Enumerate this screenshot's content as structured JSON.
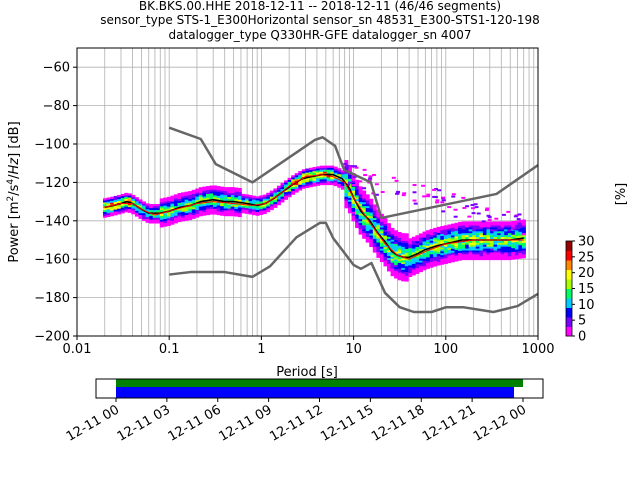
{
  "title_lines": [
    "BK.BKS.00.HHE   2018-12-11 -- 2018-12-11  (46/46 segments)",
    "sensor_type STS-1_E300Horizontal sensor_sn 48531_E300-STS1-120-198",
    "datalogger_type Q330HR-GFE datalogger_sn 4007"
  ],
  "chart_data": {
    "type": "heatmap",
    "xlabel": "Period [s]",
    "ylabel": "Power [m²/s⁴/Hz] [dB]",
    "x_scale": "log",
    "xlim": [
      0.01,
      1000
    ],
    "ylim": [
      -200,
      -50
    ],
    "x_ticks": [
      0.01,
      0.1,
      1,
      10,
      100,
      1000
    ],
    "x_tick_labels": [
      "0.01",
      "0.1",
      "1",
      "10",
      "100",
      "1000"
    ],
    "y_ticks": [
      -200,
      -180,
      -160,
      -140,
      -120,
      -100,
      -80,
      -60
    ],
    "y_tick_labels": [
      "−200",
      "−180",
      "−160",
      "−140",
      "−120",
      "−100",
      "−80",
      "−60"
    ],
    "grid": true,
    "colorbar": {
      "label": "[%]",
      "min": 0,
      "max": 30,
      "ticks": [
        0,
        5,
        10,
        15,
        20,
        25,
        30
      ],
      "tick_labels": [
        "0",
        "5",
        "10",
        "15",
        "20",
        "25",
        "30"
      ],
      "colors": [
        "#ffffff",
        "#ff00ff",
        "#7700ff",
        "#0000ff",
        "#00ccff",
        "#00ff66",
        "#aaff00",
        "#ffff00",
        "#ff8800",
        "#ff0000",
        "#990000"
      ]
    },
    "series": [
      {
        "role": "mean",
        "color": "#000000",
        "points": [
          [
            0.02,
            -133
          ],
          [
            0.025,
            -132
          ],
          [
            0.03,
            -131
          ],
          [
            0.035,
            -130
          ],
          [
            0.04,
            -131
          ],
          [
            0.05,
            -134
          ],
          [
            0.06,
            -136
          ],
          [
            0.07,
            -136
          ],
          [
            0.08,
            -136
          ],
          [
            0.1,
            -135
          ],
          [
            0.13,
            -133
          ],
          [
            0.17,
            -132
          ],
          [
            0.22,
            -130
          ],
          [
            0.3,
            -129
          ],
          [
            0.4,
            -130
          ],
          [
            0.5,
            -130
          ],
          [
            0.7,
            -131
          ],
          [
            0.9,
            -132
          ],
          [
            1.1,
            -131
          ],
          [
            1.4,
            -128
          ],
          [
            1.8,
            -124
          ],
          [
            2.2,
            -121
          ],
          [
            2.8,
            -118
          ],
          [
            3.5,
            -117
          ],
          [
            4.5,
            -116
          ],
          [
            6,
            -116
          ],
          [
            7.5,
            -118
          ],
          [
            9,
            -123
          ],
          [
            10,
            -128
          ],
          [
            12,
            -135
          ],
          [
            15,
            -140
          ],
          [
            18,
            -146
          ],
          [
            22,
            -151
          ],
          [
            26,
            -156
          ],
          [
            30,
            -158
          ],
          [
            35,
            -159
          ],
          [
            40,
            -159
          ],
          [
            50,
            -157
          ],
          [
            60,
            -155
          ],
          [
            80,
            -153
          ],
          [
            100,
            -152
          ],
          [
            150,
            -150
          ],
          [
            200,
            -150
          ],
          [
            300,
            -150
          ],
          [
            500,
            -150
          ],
          [
            700,
            -149
          ]
        ]
      },
      {
        "role": "mode",
        "color": "#ff0000",
        "points": [
          [
            0.02,
            -133
          ],
          [
            0.03,
            -131
          ],
          [
            0.04,
            -131
          ],
          [
            0.05,
            -134
          ],
          [
            0.07,
            -137
          ],
          [
            0.1,
            -135
          ],
          [
            0.2,
            -131
          ],
          [
            0.3,
            -130
          ],
          [
            0.5,
            -131
          ],
          [
            0.8,
            -132
          ],
          [
            1.1,
            -131
          ],
          [
            1.5,
            -127
          ],
          [
            2,
            -122
          ],
          [
            3,
            -117
          ],
          [
            4.5,
            -116
          ],
          [
            6,
            -117
          ],
          [
            8,
            -120
          ],
          [
            10,
            -128
          ],
          [
            15,
            -141
          ],
          [
            22,
            -152
          ],
          [
            30,
            -158
          ],
          [
            40,
            -160
          ],
          [
            60,
            -156
          ],
          [
            100,
            -152
          ],
          [
            200,
            -150
          ],
          [
            500,
            -150
          ],
          [
            700,
            -150
          ]
        ]
      },
      {
        "role": "nhnm",
        "color": "#666666",
        "points": [
          [
            0.1,
            -91.5
          ],
          [
            0.22,
            -97.4
          ],
          [
            0.32,
            -110.5
          ],
          [
            0.8,
            -120
          ],
          [
            3.8,
            -97.9
          ],
          [
            4.6,
            -96.5
          ],
          [
            6.3,
            -101
          ],
          [
            7.9,
            -113.5
          ],
          [
            15.4,
            -120
          ],
          [
            20,
            -138.5
          ],
          [
            354.8,
            -126
          ],
          [
            1000,
            -111
          ]
        ]
      },
      {
        "role": "nlnm",
        "color": "#666666",
        "points": [
          [
            0.1,
            -168
          ],
          [
            0.17,
            -166.7
          ],
          [
            0.4,
            -166.7
          ],
          [
            0.8,
            -169.2
          ],
          [
            1.24,
            -163.7
          ],
          [
            2.4,
            -148.6
          ],
          [
            4.3,
            -141.1
          ],
          [
            5,
            -141.1
          ],
          [
            6,
            -149
          ],
          [
            10,
            -163
          ],
          [
            12,
            -165
          ],
          [
            15.6,
            -162
          ],
          [
            21.9,
            -177.5
          ],
          [
            31.6,
            -185
          ],
          [
            45,
            -187.5
          ],
          [
            70,
            -187.5
          ],
          [
            101,
            -185
          ],
          [
            154,
            -185
          ],
          [
            328,
            -187.5
          ],
          [
            600,
            -184.4
          ],
          [
            1000,
            -178
          ]
        ]
      }
    ],
    "time_axis": {
      "tick_labels": [
        "12-11 00",
        "12-11 03",
        "12-11 06",
        "12-11 09",
        "12-11 12",
        "12-11 15",
        "12-11 18",
        "12-11 21",
        "12-12 00"
      ],
      "data_coverage_color": "#008000",
      "psd_coverage_color": "#0000ff"
    }
  }
}
